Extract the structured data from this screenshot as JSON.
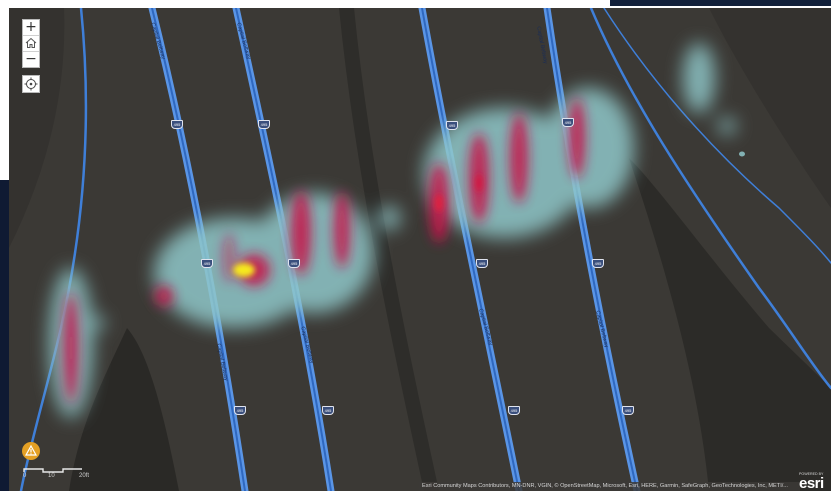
{
  "map": {
    "controls": {
      "zoom_in_label": "+",
      "home_icon": "home-icon",
      "zoom_out_label": "−",
      "locate_icon": "locate-icon"
    },
    "warning_icon": "warning-icon",
    "scale_labels": [
      "0",
      "10",
      "20ft"
    ],
    "attribution": "Esri Community Maps Contributors, MN-DNR, VGIN, © OpenStreetMap, Microsoft, Esri, HERE, Garmin, SafeGraph, GeoTechnologies, Inc, METI/...",
    "esri": {
      "powered_by": "POWERED BY",
      "logo": "esri"
    },
    "road_name": "Capital Beltway",
    "route_number": "495",
    "colors": {
      "basemap": "#3b3935",
      "road": "#3f7fd8",
      "heat_low": "#8fc7c9",
      "heat_mid": "#c5174b",
      "heat_high": "#f6ea1b"
    }
  }
}
